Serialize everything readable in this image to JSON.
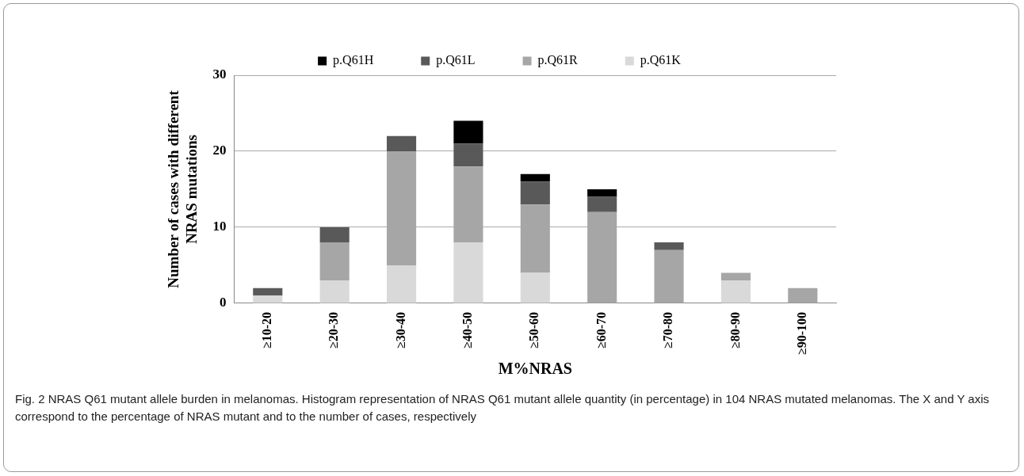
{
  "chart_data": {
    "type": "bar",
    "stacked": true,
    "xlabel": "M%NRAS",
    "ylabel": "Number of cases with different NRAS mutations",
    "categories": [
      "≥10-20",
      "≥20-30",
      "≥30-40",
      "≥40-50",
      "≥50-60",
      "≥60-70",
      "≥70-80",
      "≥80-90",
      "≥90-100"
    ],
    "series": [
      {
        "name": "p.Q61K",
        "color": "#d9d9d9",
        "values": [
          1,
          3,
          5,
          8,
          4,
          0,
          0,
          3,
          0
        ]
      },
      {
        "name": "p.Q61R",
        "color": "#a6a6a6",
        "values": [
          0,
          5,
          15,
          10,
          9,
          12,
          7,
          1,
          2
        ]
      },
      {
        "name": "p.Q61L",
        "color": "#595959",
        "values": [
          1,
          2,
          2,
          3,
          3,
          2,
          1,
          0,
          0
        ]
      },
      {
        "name": "p.Q61H",
        "color": "#000000",
        "values": [
          0,
          0,
          0,
          3,
          1,
          1,
          0,
          0,
          0
        ]
      }
    ],
    "ylim": [
      0,
      30
    ],
    "yticks": [
      0,
      10,
      20,
      30
    ],
    "grid": "y",
    "legend": "top",
    "annotations": [
      "Fig. 2 NRAS Q61 mutant allele burden in melanomas. Histogram representation of NRAS Q61 mutant allele quantity (in percentage) in 104 NRAS mutated melanomas. The X and Y axis correspond to the percentage of NRAS mutant and to the number of cases, respectively"
    ]
  }
}
